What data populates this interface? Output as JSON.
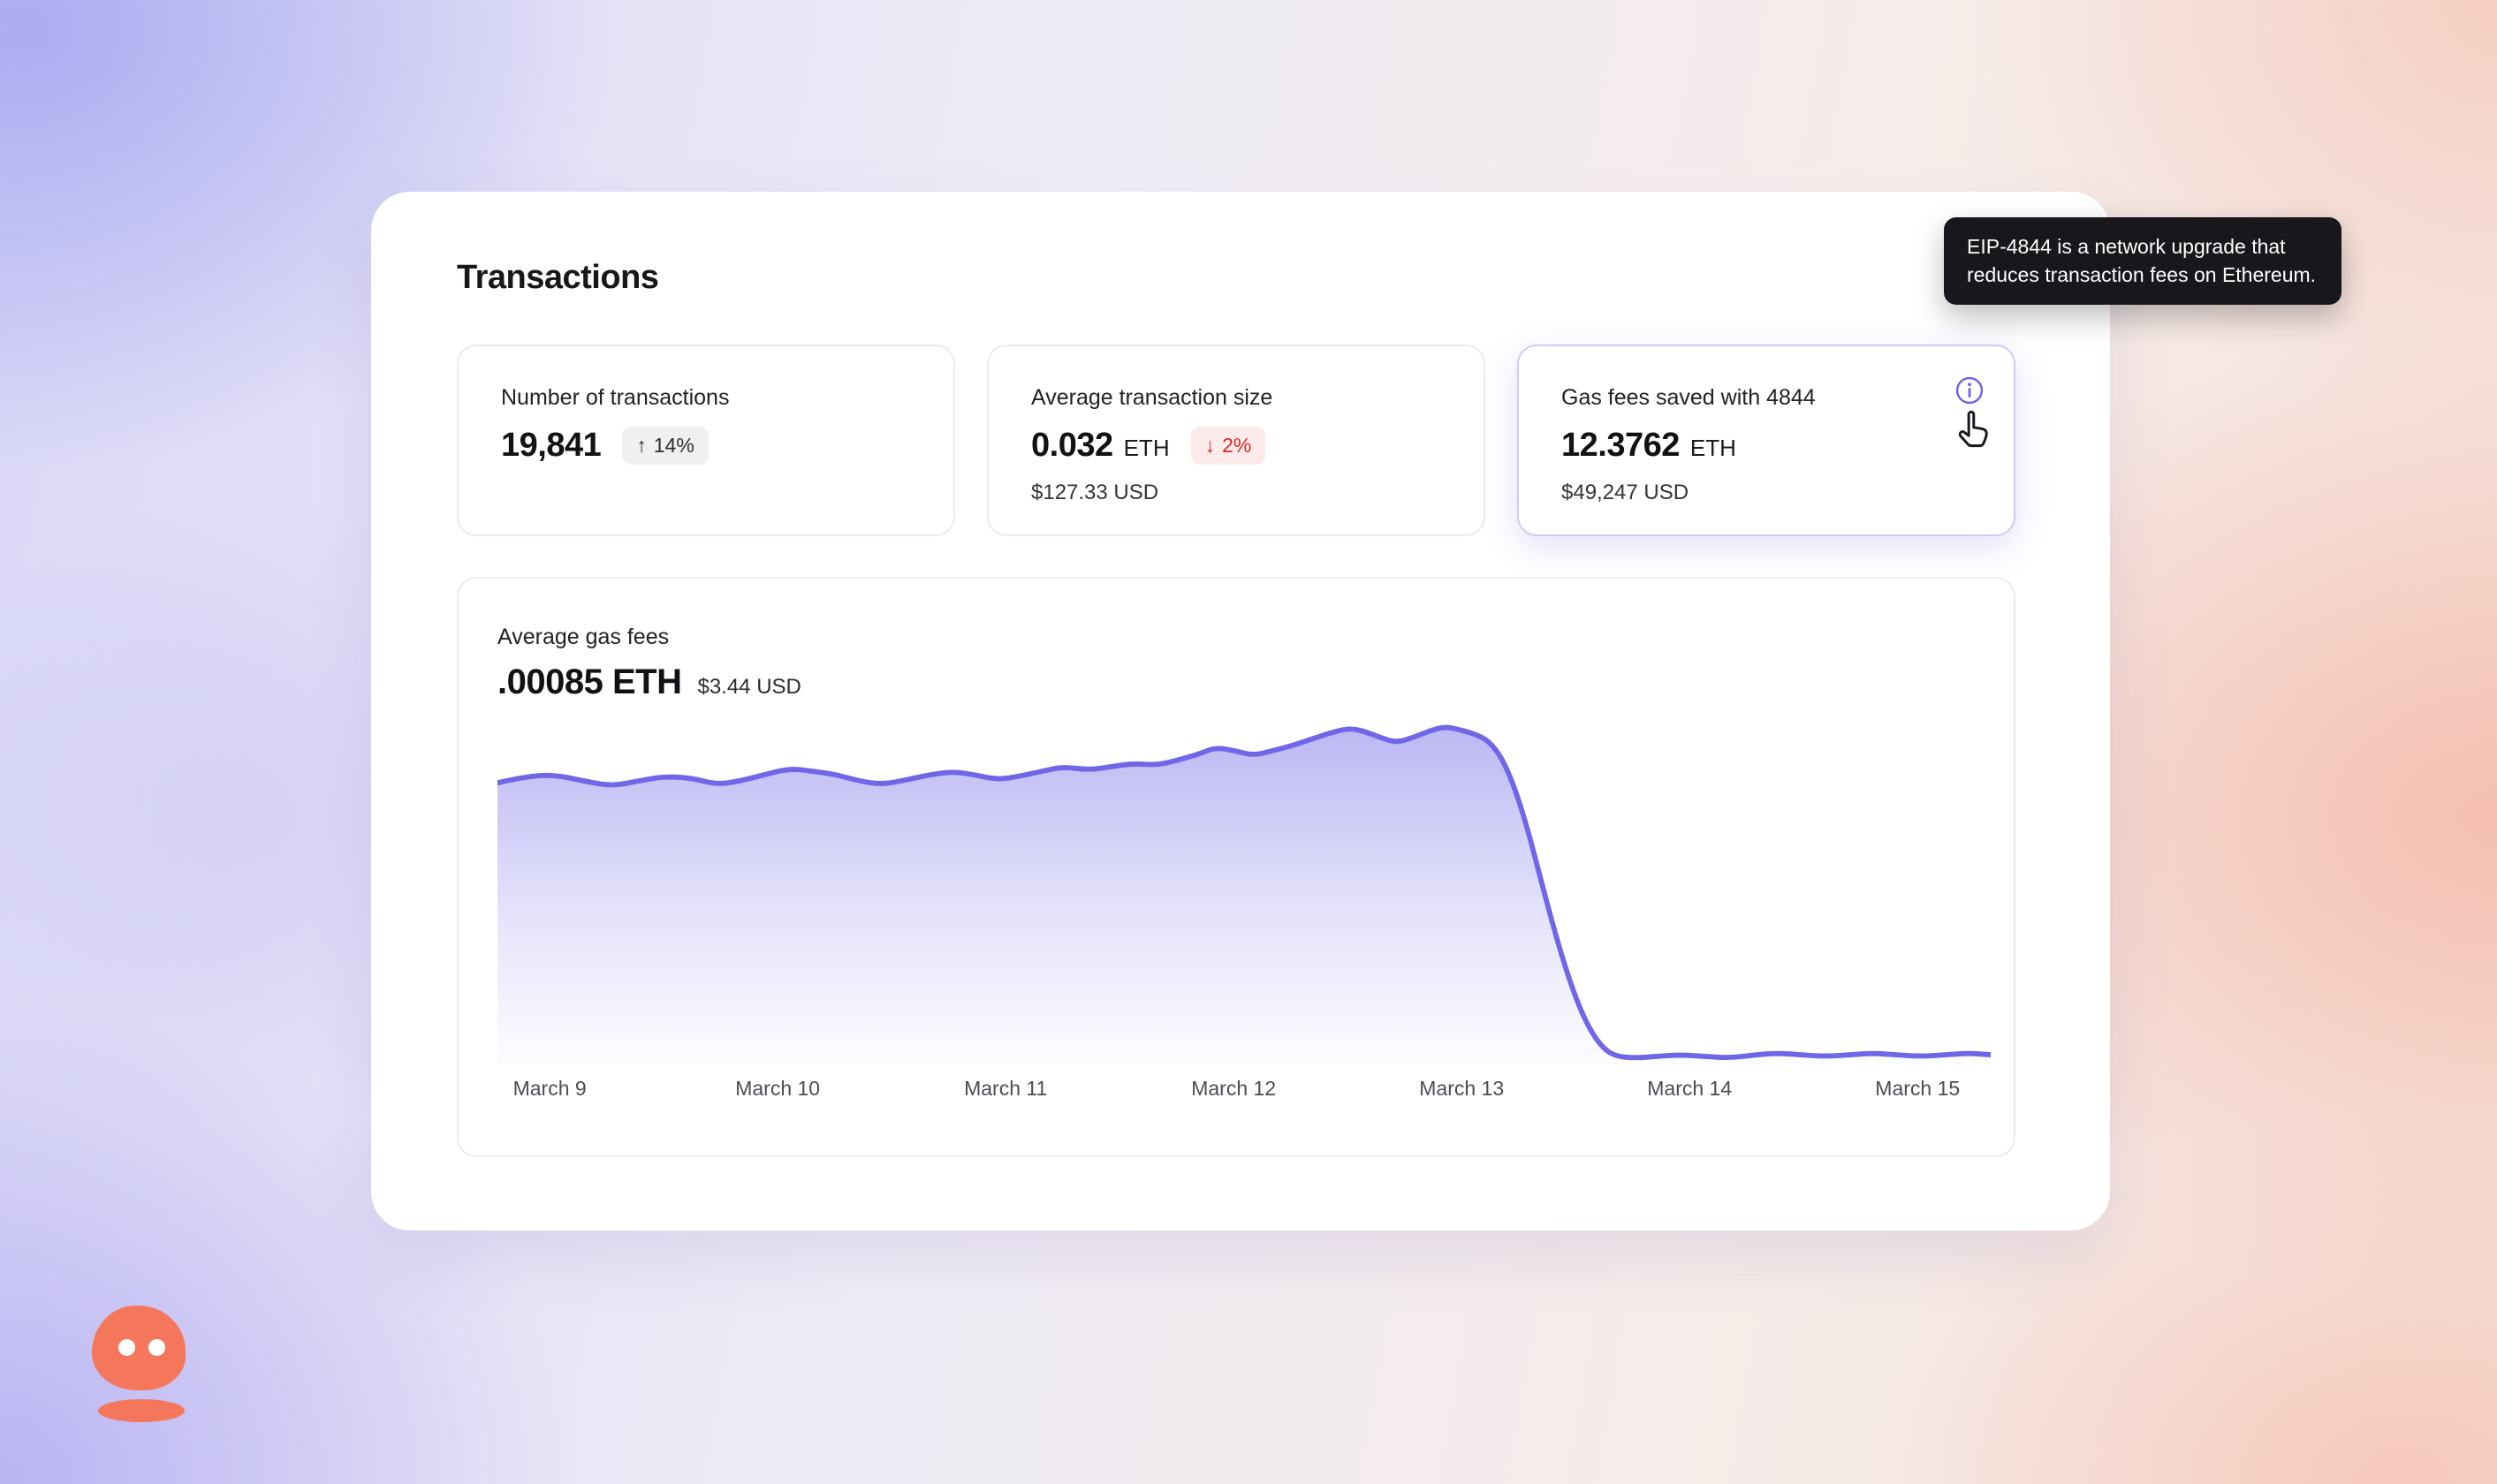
{
  "header": {
    "title": "Transactions"
  },
  "stats": [
    {
      "label": "Number of transactions",
      "value": "19,841",
      "badge": {
        "arrow": "↑",
        "text": "14%",
        "type": "neutral"
      }
    },
    {
      "label": "Average transaction size",
      "value": "0.032",
      "unit": "ETH",
      "badge": {
        "arrow": "↓",
        "text": "2%",
        "type": "negative"
      },
      "secondary": "$127.33 USD"
    },
    {
      "label": "Gas fees saved with 4844",
      "value": "12.3762",
      "unit": "ETH",
      "secondary": "$49,247 USD"
    }
  ],
  "tooltip": {
    "text": "EIP-4844 is a network upgrade that reduces transaction fees on Ethereum."
  },
  "chart_card": {
    "title": "Average gas fees",
    "value": ".00085 ETH",
    "secondary": "$3.44 USD"
  },
  "chart_data": {
    "type": "area",
    "title": "Average gas fees",
    "current_value_eth": ".00085 ETH",
    "current_value_usd": "$3.44 USD",
    "x_labels": [
      "March 9",
      "March 10",
      "March 11",
      "March 12",
      "March 13",
      "March 14",
      "March 15"
    ],
    "y_axis_visible": false,
    "grid": false,
    "legend": false,
    "line_color": "#6f66e8",
    "fill_top": "rgba(121,113,232,0.50)",
    "fill_mid": "rgba(121,113,232,0.20)",
    "fill_bottom": "rgba(121,113,232,0.02)",
    "label_first_pct": 3.5,
    "label_step_pct": 15.267,
    "points": [
      [
        0,
        38
      ],
      [
        18,
        34
      ],
      [
        36,
        33
      ],
      [
        55,
        37
      ],
      [
        72,
        40
      ],
      [
        88,
        37
      ],
      [
        105,
        34
      ],
      [
        122,
        35
      ],
      [
        138,
        39
      ],
      [
        152,
        37
      ],
      [
        168,
        33
      ],
      [
        184,
        29
      ],
      [
        200,
        31
      ],
      [
        214,
        33
      ],
      [
        228,
        37
      ],
      [
        243,
        39
      ],
      [
        258,
        36
      ],
      [
        272,
        33
      ],
      [
        287,
        31
      ],
      [
        300,
        33
      ],
      [
        315,
        36
      ],
      [
        328,
        34
      ],
      [
        342,
        31
      ],
      [
        356,
        28
      ],
      [
        372,
        30
      ],
      [
        386,
        28
      ],
      [
        400,
        26
      ],
      [
        415,
        27
      ],
      [
        428,
        24
      ],
      [
        442,
        20
      ],
      [
        452,
        16
      ],
      [
        464,
        18
      ],
      [
        476,
        21
      ],
      [
        488,
        18
      ],
      [
        500,
        15
      ],
      [
        512,
        11
      ],
      [
        524,
        7
      ],
      [
        536,
        4
      ],
      [
        546,
        6
      ],
      [
        556,
        10
      ],
      [
        566,
        13
      ],
      [
        576,
        10
      ],
      [
        586,
        6
      ],
      [
        596,
        3
      ],
      [
        606,
        5
      ],
      [
        616,
        8
      ],
      [
        624,
        12
      ],
      [
        632,
        22
      ],
      [
        640,
        40
      ],
      [
        648,
        65
      ],
      [
        656,
        95
      ],
      [
        664,
        125
      ],
      [
        672,
        152
      ],
      [
        680,
        175
      ],
      [
        688,
        192
      ],
      [
        696,
        203
      ],
      [
        704,
        208
      ],
      [
        716,
        209
      ],
      [
        730,
        208
      ],
      [
        744,
        207
      ],
      [
        760,
        208
      ],
      [
        776,
        209
      ],
      [
        792,
        207
      ],
      [
        806,
        206
      ],
      [
        820,
        207
      ],
      [
        836,
        208
      ],
      [
        852,
        207
      ],
      [
        866,
        206
      ],
      [
        880,
        207
      ],
      [
        896,
        208
      ],
      [
        912,
        207
      ],
      [
        926,
        206
      ],
      [
        940,
        207
      ]
    ]
  },
  "colors": {
    "accent": "#6f66e8",
    "negative": "#dc2626",
    "card_highlight_border": "#cfcaf6",
    "tooltip_bg": "#17171c",
    "mascot": "#f4775b"
  }
}
